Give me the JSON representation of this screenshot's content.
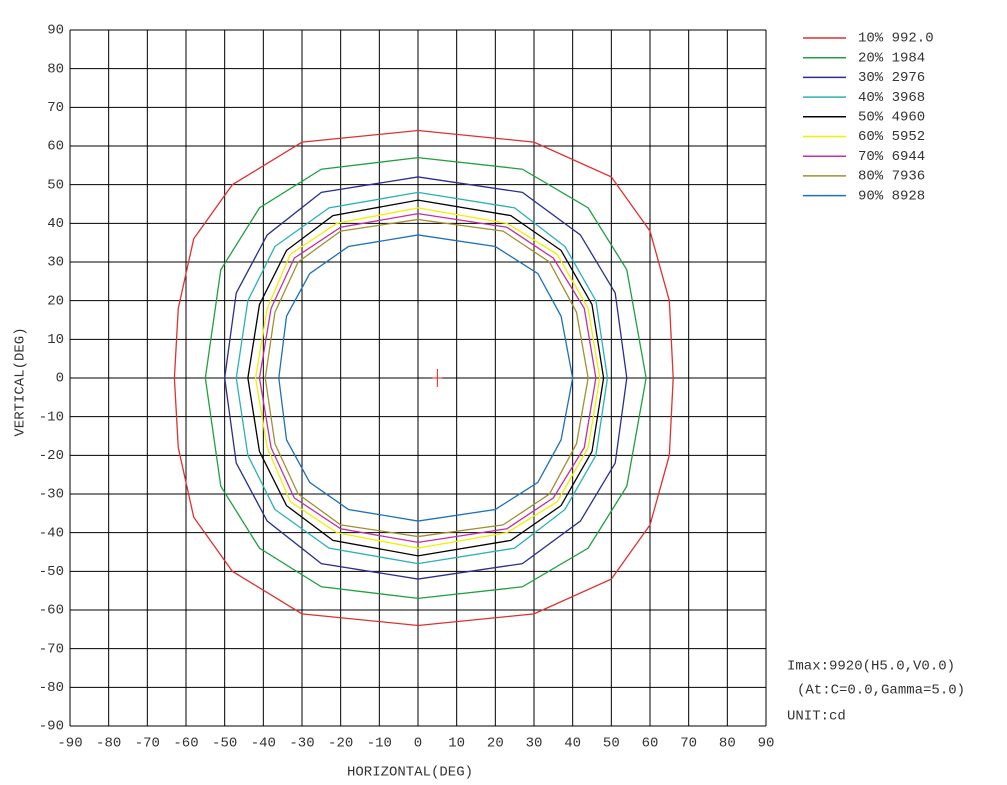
{
  "chart_data": {
    "type": "isocandela",
    "xlabel": "HORIZONTAL(DEG)",
    "ylabel": "VERTICAL(DEG)",
    "xlim": [
      -90,
      90
    ],
    "ylim": [
      -90,
      90
    ],
    "xticks": [
      -90,
      -80,
      -70,
      -60,
      -50,
      -40,
      -30,
      -20,
      -10,
      0,
      10,
      20,
      30,
      40,
      50,
      60,
      70,
      80,
      90
    ],
    "yticks": [
      -90,
      -80,
      -70,
      -60,
      -50,
      -40,
      -30,
      -20,
      -10,
      0,
      10,
      20,
      30,
      40,
      50,
      60,
      70,
      80,
      90
    ],
    "grid": true,
    "legend": "right",
    "imax_position": {
      "x": 5,
      "y": 0,
      "color": "#e02020"
    },
    "annotations": [
      "Imax:9920(H5.0,V0.0)",
      "(At:C=0.0,Gamma=5.0)",
      "UNIT:cd"
    ],
    "series": [
      {
        "name": "10% 992.0",
        "color": "#e03030",
        "x": [
          0,
          30,
          50,
          60,
          65,
          66,
          65,
          60,
          50,
          30,
          0,
          -30,
          -48,
          -58,
          -62,
          -63,
          -62,
          -58,
          -48,
          -30
        ],
        "y": [
          64,
          61,
          52,
          38,
          20,
          0,
          -20,
          -38,
          -52,
          -61,
          -64,
          -61,
          -50,
          -36,
          -18,
          0,
          18,
          36,
          50,
          61
        ]
      },
      {
        "name": "20% 1984",
        "color": "#20a040",
        "x": [
          0,
          27,
          44,
          54,
          59,
          54,
          44,
          27,
          0,
          -25,
          -41,
          -51,
          -55,
          -51,
          -41,
          -25
        ],
        "y": [
          57,
          54,
          44,
          28,
          0,
          -28,
          -44,
          -54,
          -57,
          -54,
          -44,
          -28,
          0,
          28,
          44,
          54
        ]
      },
      {
        "name": "30% 2976",
        "color": "#2a2f8c",
        "x": [
          0,
          27,
          42,
          51,
          54,
          51,
          42,
          27,
          0,
          -25,
          -39,
          -47,
          -50,
          -47,
          -39,
          -25
        ],
        "y": [
          52,
          48,
          37,
          22,
          0,
          -22,
          -37,
          -48,
          -52,
          -48,
          -37,
          -22,
          0,
          22,
          37,
          48
        ]
      },
      {
        "name": "40% 3968",
        "color": "#2ab0b8",
        "x": [
          0,
          25,
          38,
          46,
          49,
          46,
          38,
          25,
          0,
          -23,
          -37,
          -44,
          -47,
          -44,
          -37,
          -23
        ],
        "y": [
          48,
          44,
          34,
          20,
          0,
          -20,
          -34,
          -44,
          -48,
          -44,
          -34,
          -20,
          0,
          20,
          34,
          44
        ]
      },
      {
        "name": "50% 4960",
        "color": "#000000",
        "x": [
          0,
          24,
          37,
          45,
          48,
          45,
          37,
          24,
          0,
          -22,
          -34,
          -41,
          -44,
          -41,
          -34,
          -22
        ],
        "y": [
          46,
          42,
          33,
          19,
          0,
          -19,
          -33,
          -42,
          -46,
          -42,
          -33,
          -19,
          0,
          19,
          33,
          42
        ]
      },
      {
        "name": "60% 5952",
        "color": "#f0f000",
        "x": [
          0,
          23,
          36,
          44,
          47,
          44,
          36,
          23,
          0,
          -21,
          -33,
          -39,
          -42,
          -39,
          -33,
          -21
        ],
        "y": [
          44,
          40,
          32,
          18,
          0,
          -18,
          -32,
          -40,
          -44,
          -40,
          -32,
          -18,
          0,
          18,
          32,
          40
        ]
      },
      {
        "name": "70% 6944",
        "color": "#c030a0",
        "x": [
          0,
          23,
          35,
          43,
          46,
          43,
          35,
          23,
          0,
          -20,
          -32,
          -38,
          -41,
          -38,
          -32,
          -20
        ],
        "y": [
          42.5,
          39,
          31,
          18,
          0,
          -18,
          -31,
          -39,
          -42.5,
          -39,
          -31,
          -18,
          0,
          18,
          31,
          39
        ]
      },
      {
        "name": "80% 7936",
        "color": "#a09030",
        "x": [
          0,
          22,
          34,
          41,
          44,
          41,
          34,
          22,
          0,
          -20,
          -31,
          -37,
          -39.5,
          -37,
          -31,
          -20
        ],
        "y": [
          41,
          38,
          30,
          17,
          0,
          -17,
          -30,
          -38,
          -41,
          -38,
          -30,
          -17,
          0,
          17,
          30,
          38
        ]
      },
      {
        "name": "90% 8928",
        "color": "#2070b8",
        "x": [
          0,
          20,
          31,
          37,
          40,
          37,
          31,
          20,
          0,
          -18,
          -28,
          -34,
          -36,
          -34,
          -28,
          -18
        ],
        "y": [
          37,
          34,
          27,
          16,
          0,
          -16,
          -27,
          -34,
          -37,
          -34,
          -27,
          -16,
          0,
          16,
          27,
          34
        ]
      }
    ]
  }
}
